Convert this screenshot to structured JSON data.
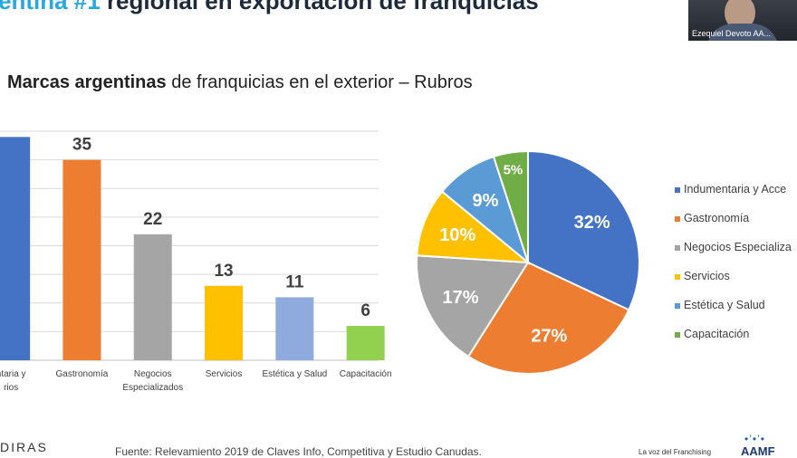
{
  "slide": {
    "title_highlight": "entina #1",
    "title_rest": " regional en exportación de franquicias",
    "subtitle_bold": "Marcas argentinas",
    "subtitle_rest": " de franquicias en el exterior – Rubros"
  },
  "video": {
    "participant_name": "Ezequiel Devoto AA..."
  },
  "colors": {
    "blue": "#4472c4",
    "orange": "#ed7d31",
    "gray": "#a5a5a5",
    "yellow": "#ffc000",
    "lightblue": "#8faadc",
    "green": "#70ad47",
    "pie_blue": "#5b9bd5",
    "grid": "#d9d9d9"
  },
  "chart_data": [
    {
      "type": "bar",
      "categories": [
        [
          "ntaria y",
          "rios"
        ],
        [
          "Gastronomía"
        ],
        [
          "Negocios",
          "Especializados"
        ],
        [
          "Servicios"
        ],
        [
          "Estética y Salud"
        ],
        [
          "Capacitación"
        ]
      ],
      "values": [
        null,
        35,
        22,
        13,
        11,
        6
      ],
      "value_labels": [
        "",
        "35",
        "22",
        "13",
        "11",
        "6"
      ],
      "colors": [
        "#4472c4",
        "#ed7d31",
        "#a5a5a5",
        "#ffc000",
        "#8faadc",
        "#92d050"
      ],
      "ylim": [
        0,
        40
      ],
      "grid": true
    },
    {
      "type": "pie",
      "labels": [
        "Indumentaria y Acce",
        "Gastronomía",
        "Negocios Especializa",
        "Servicios",
        "Estética y Salud",
        "Capacitación"
      ],
      "values": [
        32,
        27,
        17,
        10,
        9,
        5
      ],
      "value_labels": [
        "32%",
        "27%",
        "17%",
        "10%",
        "9%",
        "5%"
      ],
      "colors": [
        "#4472c4",
        "#ed7d31",
        "#a5a5a5",
        "#ffc000",
        "#5b9bd5",
        "#70ad47"
      ],
      "legend_position": "right"
    }
  ],
  "footer": {
    "logo_left": "DIRAS",
    "source": "Fuente: Relevamiento 2019 de Claves Info, Competitiva y Estudio Canudas.",
    "tagline": "La voz del Franchising",
    "logo_right": "AAMF"
  }
}
